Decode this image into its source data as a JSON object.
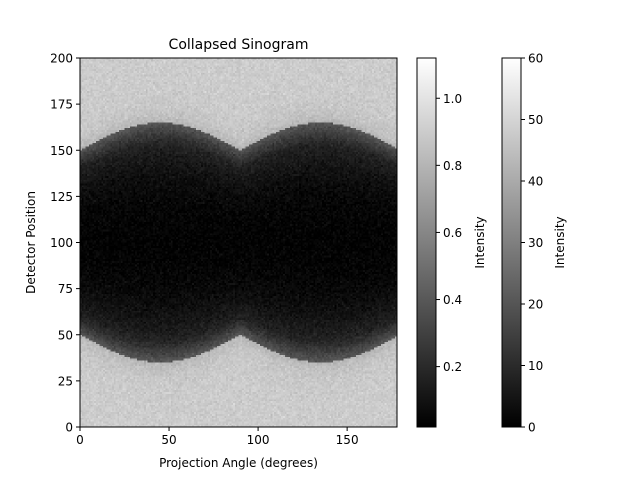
{
  "chart_data": {
    "type": "heatmap",
    "title": "Collapsed Sinogram",
    "xlabel": "Projection Angle (degrees)",
    "ylabel": "Detector Position",
    "xlim": [
      0,
      178
    ],
    "ylim": [
      0,
      200
    ],
    "x_ticks": [
      0,
      50,
      100,
      150
    ],
    "y_ticks": [
      0,
      25,
      50,
      75,
      100,
      125,
      150,
      175,
      200
    ],
    "colormap": "gray",
    "structure": {
      "background_intensity": 0.9,
      "band_center_detector": 100,
      "band_halfwidth_min": 50,
      "band_halfwidth_max": 65,
      "band_period_degrees": 90,
      "band_bright_points_at_degrees": [
        0,
        90,
        180
      ],
      "darkest_intensity": 0.05,
      "noise": true
    },
    "colorbars": [
      {
        "label": "Intensity",
        "range": [
          0.02,
          1.12
        ],
        "ticks": [
          0.2,
          0.4,
          0.6,
          0.8,
          1.0
        ],
        "tick_labels": [
          "0.2",
          "0.4",
          "0.6",
          "0.8",
          "1.0"
        ]
      },
      {
        "label": "Intensity",
        "range": [
          0,
          60
        ],
        "ticks": [
          0,
          10,
          20,
          30,
          40,
          50,
          60
        ],
        "tick_labels": [
          "0",
          "10",
          "20",
          "30",
          "40",
          "50",
          "60"
        ]
      }
    ]
  }
}
